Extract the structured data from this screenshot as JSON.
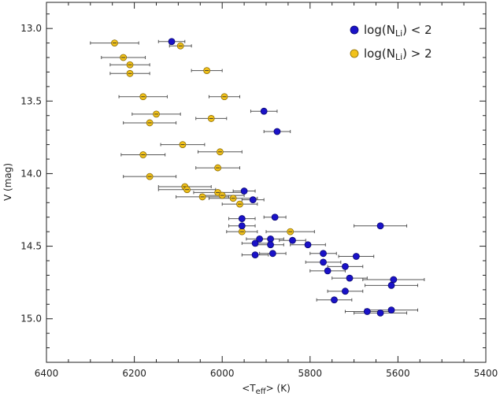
{
  "chart_data": {
    "type": "scatter",
    "xlabel": "<T",
    "xlabel_sub": "eff",
    "xlabel_tail": "> (K)",
    "ylabel": "V (mag)",
    "xlim": [
      6400,
      5400
    ],
    "ylim": [
      15.3,
      12.82
    ],
    "x_reversed": true,
    "y_reversed": true,
    "x_ticks": [
      6400,
      6200,
      6000,
      5800,
      5600,
      5400
    ],
    "x_tick_labels": [
      "6400",
      "6200",
      "6000",
      "5800",
      "5600",
      "5400"
    ],
    "y_ticks": [
      13.0,
      13.5,
      14.0,
      14.5,
      15.0
    ],
    "y_tick_labels": [
      "13.0",
      "13.5",
      "14.0",
      "14.5",
      "15.0"
    ],
    "grid": false,
    "legend_position": "top-right",
    "series": [
      {
        "name": "log(N_Li) < 2",
        "legend_prefix": "log(N",
        "legend_sub": "Li",
        "legend_suffix": ")  <  2",
        "color": "#1a12c8",
        "edge": "#0a0870",
        "points": [
          {
            "x": 6115,
            "y": 13.09,
            "xerr": 30
          },
          {
            "x": 5905,
            "y": 13.57,
            "xerr": 30
          },
          {
            "x": 5875,
            "y": 13.71,
            "xerr": 30
          },
          {
            "x": 5950,
            "y": 14.12,
            "xerr": 25
          },
          {
            "x": 5930,
            "y": 14.18,
            "xerr": 25
          },
          {
            "x": 5880,
            "y": 14.3,
            "xerr": 25
          },
          {
            "x": 5955,
            "y": 14.31,
            "xerr": 30
          },
          {
            "x": 5955,
            "y": 14.36,
            "xerr": 30
          },
          {
            "x": 5640,
            "y": 14.36,
            "xerr": 60
          },
          {
            "x": 5915,
            "y": 14.45,
            "xerr": 30
          },
          {
            "x": 5890,
            "y": 14.45,
            "xerr": 30
          },
          {
            "x": 5840,
            "y": 14.46,
            "xerr": 30
          },
          {
            "x": 5925,
            "y": 14.48,
            "xerr": 30
          },
          {
            "x": 5890,
            "y": 14.49,
            "xerr": 30
          },
          {
            "x": 5805,
            "y": 14.49,
            "xerr": 40
          },
          {
            "x": 5925,
            "y": 14.56,
            "xerr": 30
          },
          {
            "x": 5885,
            "y": 14.55,
            "xerr": 30
          },
          {
            "x": 5770,
            "y": 14.55,
            "xerr": 30
          },
          {
            "x": 5695,
            "y": 14.57,
            "xerr": 40
          },
          {
            "x": 5770,
            "y": 14.61,
            "xerr": 40
          },
          {
            "x": 5720,
            "y": 14.64,
            "xerr": 40
          },
          {
            "x": 5760,
            "y": 14.67,
            "xerr": 40
          },
          {
            "x": 5710,
            "y": 14.72,
            "xerr": 40
          },
          {
            "x": 5610,
            "y": 14.73,
            "xerr": 70
          },
          {
            "x": 5615,
            "y": 14.77,
            "xerr": 60
          },
          {
            "x": 5720,
            "y": 14.81,
            "xerr": 40
          },
          {
            "x": 5745,
            "y": 14.87,
            "xerr": 40
          },
          {
            "x": 5615,
            "y": 14.94,
            "xerr": 60
          },
          {
            "x": 5670,
            "y": 14.95,
            "xerr": 50
          },
          {
            "x": 5640,
            "y": 14.96,
            "xerr": 60
          }
        ]
      },
      {
        "name": "log(N_Li) > 2",
        "legend_prefix": "log(N",
        "legend_sub": "Li",
        "legend_suffix": ")  >  2",
        "color": "#f2c21a",
        "edge": "#8a6a00",
        "points": [
          {
            "x": 6245,
            "y": 13.1,
            "xerr": 55
          },
          {
            "x": 6095,
            "y": 13.12,
            "xerr": 25
          },
          {
            "x": 6225,
            "y": 13.2,
            "xerr": 50
          },
          {
            "x": 6210,
            "y": 13.25,
            "xerr": 45
          },
          {
            "x": 6035,
            "y": 13.29,
            "xerr": 35
          },
          {
            "x": 6210,
            "y": 13.31,
            "xerr": 45
          },
          {
            "x": 6180,
            "y": 13.47,
            "xerr": 55
          },
          {
            "x": 5995,
            "y": 13.47,
            "xerr": 35
          },
          {
            "x": 6150,
            "y": 13.59,
            "xerr": 55
          },
          {
            "x": 6025,
            "y": 13.62,
            "xerr": 35
          },
          {
            "x": 6165,
            "y": 13.65,
            "xerr": 60
          },
          {
            "x": 6090,
            "y": 13.8,
            "xerr": 50
          },
          {
            "x": 6005,
            "y": 13.85,
            "xerr": 50
          },
          {
            "x": 6180,
            "y": 13.87,
            "xerr": 50
          },
          {
            "x": 6010,
            "y": 13.96,
            "xerr": 50
          },
          {
            "x": 6165,
            "y": 14.02,
            "xerr": 60
          },
          {
            "x": 6085,
            "y": 14.09,
            "xerr": 60
          },
          {
            "x": 6080,
            "y": 14.11,
            "xerr": 65
          },
          {
            "x": 6010,
            "y": 14.13,
            "xerr": 55
          },
          {
            "x": 6000,
            "y": 14.15,
            "xerr": 50
          },
          {
            "x": 6045,
            "y": 14.16,
            "xerr": 60
          },
          {
            "x": 5975,
            "y": 14.17,
            "xerr": 55
          },
          {
            "x": 5960,
            "y": 14.21,
            "xerr": 40
          },
          {
            "x": 5845,
            "y": 14.4,
            "xerr": 55
          },
          {
            "x": 5955,
            "y": 14.4,
            "xerr": 35
          }
        ]
      }
    ]
  }
}
